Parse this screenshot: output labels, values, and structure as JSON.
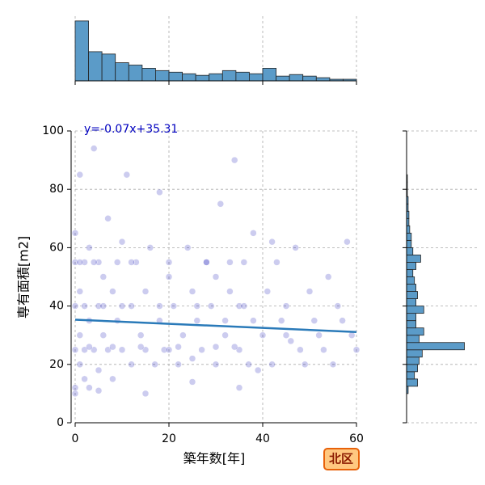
{
  "chart_data": [
    {
      "type": "scatter",
      "xlabel": "築年数[年]",
      "ylabel": "専有面積[m2]",
      "xlim": [
        0,
        60
      ],
      "ylim": [
        0,
        100
      ],
      "xticks": [
        0,
        20,
        40,
        60
      ],
      "yticks": [
        0,
        20,
        40,
        60,
        80,
        100
      ],
      "grid": true,
      "color": "#0000b0",
      "x": [
        0,
        0,
        0,
        0,
        0,
        1,
        1,
        1,
        1,
        2,
        2,
        2,
        3,
        3,
        3,
        4,
        4,
        5,
        5,
        5,
        6,
        6,
        7,
        7,
        8,
        8,
        9,
        9,
        10,
        10,
        11,
        12,
        12,
        13,
        14,
        15,
        15,
        16,
        17,
        18,
        18,
        19,
        20,
        20,
        21,
        22,
        23,
        24,
        25,
        25,
        26,
        27,
        28,
        29,
        30,
        30,
        31,
        32,
        33,
        34,
        35,
        35,
        36,
        37,
        38,
        38,
        39,
        40,
        41,
        42,
        43,
        44,
        45,
        46,
        47,
        48,
        50,
        51,
        52,
        54,
        55,
        56,
        58,
        59,
        60,
        3,
        8,
        14,
        22,
        30,
        34,
        2,
        6,
        10,
        18,
        26,
        36,
        1,
        4,
        12,
        20,
        28,
        33,
        45,
        53,
        57,
        0,
        5,
        15,
        25,
        35,
        49,
        42,
        32
      ],
      "y": [
        25,
        40,
        55,
        65,
        12,
        30,
        20,
        85,
        45,
        25,
        55,
        15,
        35,
        60,
        12,
        94,
        25,
        40,
        55,
        18,
        30,
        50,
        25,
        70,
        45,
        15,
        55,
        35,
        25,
        62,
        85,
        20,
        40,
        55,
        30,
        25,
        45,
        60,
        20,
        35,
        79,
        25,
        25,
        50,
        40,
        20,
        30,
        60,
        22,
        45,
        35,
        25,
        55,
        40,
        20,
        50,
        75,
        30,
        45,
        90,
        25,
        40,
        55,
        20,
        35,
        65,
        18,
        30,
        45,
        20,
        55,
        35,
        40,
        28,
        60,
        25,
        45,
        35,
        30,
        50,
        20,
        40,
        62,
        30,
        25,
        26,
        26,
        26,
        26,
        26,
        26,
        40,
        40,
        40,
        40,
        40,
        40,
        55,
        55,
        55,
        55,
        55,
        55,
        30,
        25,
        35,
        10,
        11,
        10,
        14,
        12,
        20,
        62,
        35
      ],
      "regression": {
        "slope": -0.07,
        "intercept": 35.31,
        "label": "y=-0.07x+35.31",
        "color": "#2a7ab9"
      },
      "badge": "北区"
    },
    {
      "type": "histogram",
      "orientation": "vertical",
      "color": "#5b9bc8",
      "bins": [
        0,
        2.86,
        5.71,
        8.57,
        11.43,
        14.29,
        17.14,
        20,
        22.86,
        25.71,
        28.57,
        31.43,
        34.29,
        37.14,
        40,
        42.86,
        45.71,
        48.57,
        51.43,
        54.29,
        57.14,
        60
      ],
      "values": [
        76,
        37,
        34,
        23,
        20,
        16,
        13,
        11,
        9,
        7,
        9,
        13,
        11,
        9,
        16,
        6,
        8,
        6,
        4,
        2,
        2
      ],
      "xlim": [
        0,
        60
      ],
      "xticks": [
        0,
        20,
        40,
        60
      ],
      "ylim": [
        0,
        80
      ],
      "grid": true
    },
    {
      "type": "histogram",
      "orientation": "horizontal",
      "color": "#5b9bc8",
      "bins": [
        10,
        12.5,
        15,
        17.5,
        20,
        22.5,
        25,
        27.5,
        30,
        32.5,
        35,
        37.5,
        40,
        42.5,
        45,
        47.5,
        50,
        52.5,
        55,
        57.5,
        60,
        62.5,
        65,
        67.5,
        70,
        72.5,
        75,
        77.5,
        80,
        82.5,
        85
      ],
      "values": [
        2,
        14,
        10,
        14,
        16,
        20,
        74,
        16,
        22,
        12,
        12,
        22,
        12,
        14,
        12,
        10,
        8,
        12,
        18,
        8,
        6,
        6,
        4,
        3,
        3,
        2,
        2,
        1,
        1,
        1
      ],
      "ylim": [
        0,
        100
      ],
      "yticks": [
        0,
        20,
        40,
        60,
        80,
        100
      ],
      "xlim": [
        0,
        90
      ],
      "grid": true
    }
  ]
}
